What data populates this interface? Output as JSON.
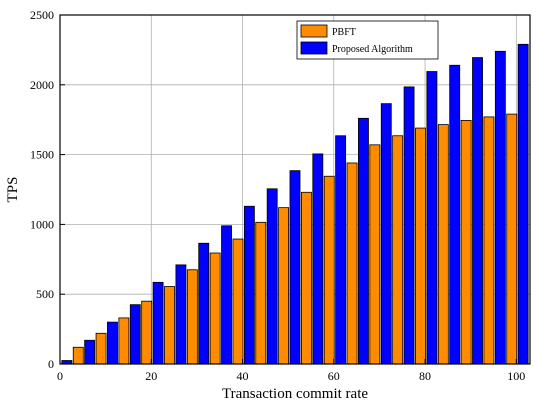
{
  "chart_data": {
    "type": "bar",
    "xlabel": "Transaction commit rate",
    "ylabel": "TPS",
    "xlim": [
      0,
      103
    ],
    "ylim": [
      0,
      2500
    ],
    "xticks": [
      0,
      20,
      40,
      60,
      80,
      100
    ],
    "yticks": [
      0,
      500,
      1000,
      1500,
      2000,
      2500
    ],
    "grid": true,
    "legend_position": "top-right",
    "bar_width": 2.2,
    "series": [
      {
        "name": "PBFT",
        "color": "#ff8c00",
        "x": [
          4,
          9,
          14,
          19,
          24,
          29,
          34,
          39,
          44,
          49,
          54,
          59,
          64,
          69,
          74,
          79,
          84,
          89,
          94,
          99
        ],
        "values": [
          120,
          220,
          330,
          450,
          555,
          675,
          795,
          895,
          1015,
          1120,
          1230,
          1345,
          1440,
          1570,
          1635,
          1690,
          1715,
          1745,
          1770,
          1790
        ]
      },
      {
        "name": "Proposed Algorithm",
        "color": "#0000ff",
        "x": [
          1.5,
          6.5,
          11.5,
          16.5,
          21.5,
          26.5,
          31.5,
          36.5,
          41.5,
          46.5,
          51.5,
          56.5,
          61.5,
          66.5,
          71.5,
          76.5,
          81.5,
          86.5,
          91.5,
          96.5,
          101.5
        ],
        "values": [
          25,
          170,
          300,
          425,
          585,
          710,
          865,
          990,
          1130,
          1255,
          1385,
          1505,
          1635,
          1760,
          1865,
          1985,
          2095,
          2140,
          2195,
          2240,
          2290
        ]
      }
    ]
  }
}
